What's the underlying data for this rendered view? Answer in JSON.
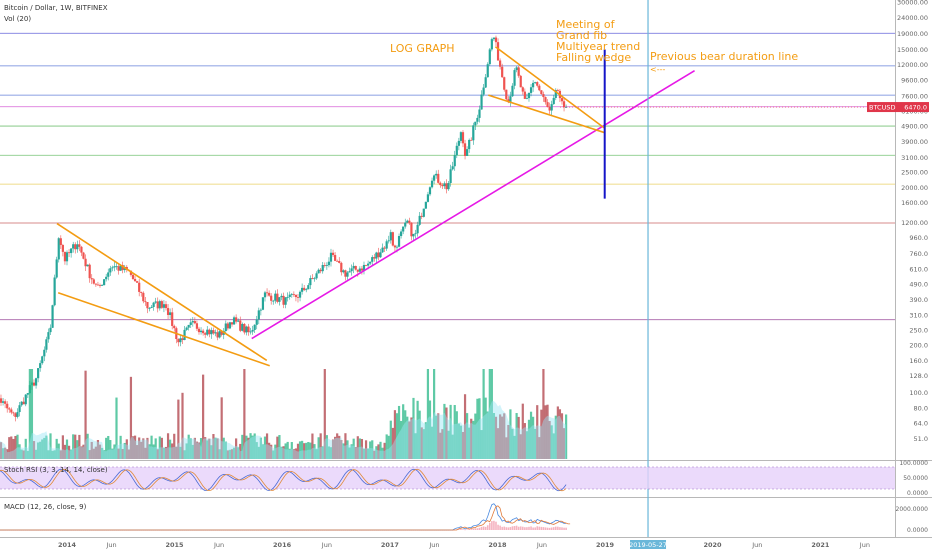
{
  "header": {
    "symbol_line": "Bitcoin / Dollar, 1W, BITFINEX",
    "volume_label": "Vol (20)"
  },
  "indicators": {
    "stoch_label": "Stoch RSI (3, 3, 14, 14, close)",
    "macd_label": "MACD (12, 26, close, 9)",
    "stoch_ticks": [
      "100.0000",
      "50.0000",
      "0.0000"
    ],
    "macd_ticks": [
      "2000.0000",
      "0.0000"
    ]
  },
  "annotations": {
    "log_graph": "LOG GRAPH",
    "meeting_lines": [
      "Meeting of",
      "Grand fib",
      "Multiyear trend",
      "Falling wedge"
    ],
    "bear_line_label": "Previous bear duration line",
    "bear_arrow": "<---",
    "price_tag": "6470.0",
    "price_tag_symbol": "BTCUSD",
    "date_tag": "2019-05-27"
  },
  "colors": {
    "bull": "#26a69a",
    "bear": "#ef5350",
    "orange": "#f39c12",
    "magenta": "#e619e6",
    "blue": "#1515c8",
    "cyan": "#6ab7d9",
    "stoch_fill": "#e6d1fa",
    "volume_ma": "#8fe3f5"
  },
  "chart_data": {
    "type": "candlestick",
    "title": "Bitcoin / Dollar, 1W, BITFINEX",
    "y_scale": "log",
    "ylim": [
      42,
      30000
    ],
    "y_ticks": [
      30000,
      24000,
      19000,
      15000,
      12000,
      9600,
      7600,
      6100,
      4900,
      3900,
      3100,
      2500,
      2000,
      1600,
      1200,
      960,
      760,
      610,
      490,
      390,
      310,
      250,
      200,
      160,
      128,
      100,
      80,
      64,
      51
    ],
    "x_ticks": [
      "2014",
      "Jun",
      "2015",
      "Jun",
      "2016",
      "Jun",
      "2017",
      "Jun",
      "2018",
      "Jun",
      "2019",
      "2019-05-27",
      "2020",
      "Jun",
      "2021",
      "Jun"
    ],
    "x_tick_dates": [
      "2014-01-01",
      "2014-06-01",
      "2015-01-01",
      "2015-06-01",
      "2016-01-01",
      "2016-06-01",
      "2017-01-01",
      "2017-06-01",
      "2018-01-01",
      "2018-06-01",
      "2019-01-01",
      "2019-05-27",
      "2020-01-01",
      "2020-06-01",
      "2021-01-01",
      "2021-06-01"
    ],
    "last_price": 6470,
    "price_anchors": [
      {
        "date": "2013-04-10",
        "price": 110
      },
      {
        "date": "2013-07-05",
        "price": 70
      },
      {
        "date": "2013-09-20",
        "price": 125
      },
      {
        "date": "2013-11-05",
        "price": 250
      },
      {
        "date": "2013-12-04",
        "price": 1000
      },
      {
        "date": "2013-12-25",
        "price": 700
      },
      {
        "date": "2014-02-05",
        "price": 900
      },
      {
        "date": "2014-03-20",
        "price": 560
      },
      {
        "date": "2014-04-15",
        "price": 450
      },
      {
        "date": "2014-06-01",
        "price": 640
      },
      {
        "date": "2014-08-01",
        "price": 580
      },
      {
        "date": "2014-10-01",
        "price": 350
      },
      {
        "date": "2014-12-01",
        "price": 370
      },
      {
        "date": "2015-01-14",
        "price": 210
      },
      {
        "date": "2015-03-01",
        "price": 270
      },
      {
        "date": "2015-06-01",
        "price": 230
      },
      {
        "date": "2015-07-15",
        "price": 290
      },
      {
        "date": "2015-09-15",
        "price": 235
      },
      {
        "date": "2015-11-04",
        "price": 420
      },
      {
        "date": "2016-01-15",
        "price": 380
      },
      {
        "date": "2016-03-01",
        "price": 420
      },
      {
        "date": "2016-06-15",
        "price": 720
      },
      {
        "date": "2016-08-01",
        "price": 570
      },
      {
        "date": "2016-10-15",
        "price": 640
      },
      {
        "date": "2016-12-25",
        "price": 900
      },
      {
        "date": "2017-01-05",
        "price": 1100
      },
      {
        "date": "2017-01-12",
        "price": 800
      },
      {
        "date": "2017-03-01",
        "price": 1200
      },
      {
        "date": "2017-03-25",
        "price": 950
      },
      {
        "date": "2017-05-25",
        "price": 2400
      },
      {
        "date": "2017-07-15",
        "price": 2000
      },
      {
        "date": "2017-09-01",
        "price": 4700
      },
      {
        "date": "2017-09-15",
        "price": 3100
      },
      {
        "date": "2017-11-01",
        "price": 6500
      },
      {
        "date": "2017-12-17",
        "price": 19000
      },
      {
        "date": "2018-02-06",
        "price": 6900
      },
      {
        "date": "2018-03-05",
        "price": 11500
      },
      {
        "date": "2018-04-06",
        "price": 6600
      },
      {
        "date": "2018-05-05",
        "price": 9800
      },
      {
        "date": "2018-06-28",
        "price": 5900
      },
      {
        "date": "2018-07-24",
        "price": 8400
      },
      {
        "date": "2018-08-14",
        "price": 6000
      },
      {
        "date": "2018-08-25",
        "price": 6470
      }
    ],
    "trendlines": [
      {
        "name": "upper wedge 2014",
        "from": [
          "2013-11-28",
          1180
        ],
        "to": [
          "2015-11-10",
          160
        ]
      },
      {
        "name": "lower wedge 2014",
        "from": [
          "2013-12-02",
          430
        ],
        "to": [
          "2015-11-20",
          148
        ]
      },
      {
        "name": "multiyear trend",
        "from": [
          "2015-09-20",
          220
        ],
        "to": [
          "2019-11-01",
          11000
        ]
      },
      {
        "name": "upper wedge 2018",
        "from": [
          "2017-12-25",
          15600
        ],
        "to": [
          "2018-12-31",
          4750
        ]
      },
      {
        "name": "lower wedge 2018",
        "from": [
          "2017-12-01",
          7700
        ],
        "to": [
          "2018-12-31",
          4450
        ]
      }
    ],
    "horizontal_levels": [
      {
        "price": 19000,
        "color": "#4a4ad4"
      },
      {
        "price": 11800,
        "color": "#4a6ad4"
      },
      {
        "price": 7700,
        "color": "#4a6ad4"
      },
      {
        "price": 6500,
        "color": "#d04ad0"
      },
      {
        "price": 4900,
        "color": "#5cb85c"
      },
      {
        "price": 3200,
        "color": "#5cb85c"
      },
      {
        "price": 2100,
        "color": "#e6c84a"
      },
      {
        "price": 1190,
        "color": "#c04a4a"
      },
      {
        "price": 290,
        "color": "#9a4a9a"
      }
    ],
    "vertical_lines": [
      {
        "date": "2018-12-31",
        "from_price": 15000,
        "to_price": 1700,
        "color": "#1515c8"
      },
      {
        "date": "2019-05-27",
        "color": "#6ab7d9"
      }
    ]
  }
}
